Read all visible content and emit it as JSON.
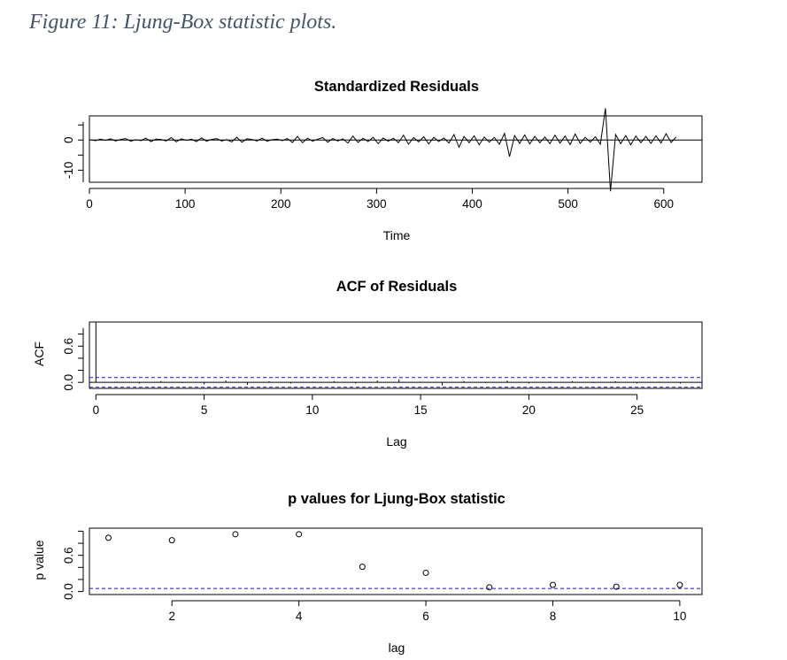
{
  "caption": "Figure 11: Ljung-Box statistic plots.",
  "chart_data": [
    {
      "type": "line",
      "title": "Standardized Residuals",
      "xlabel": "Time",
      "ylabel": "",
      "xlim": [
        0,
        640
      ],
      "ylim": [
        -14,
        8
      ],
      "xticks": [
        0,
        100,
        200,
        300,
        400,
        500,
        600
      ],
      "yticks": [
        -10,
        0
      ],
      "reference_line_y": 0,
      "series": [
        {
          "values": [
            0.1,
            -0.2,
            0.3,
            -0.1,
            0.4,
            -0.3,
            0.2,
            0.5,
            -0.4,
            0.1,
            -0.2,
            0.6,
            -0.5,
            0.3,
            0.2,
            -0.3,
            0.8,
            -0.6,
            0.4,
            -0.1,
            0.3,
            -0.5,
            0.7,
            -0.4,
            0.2,
            0.5,
            -0.3,
            0.1,
            -0.6,
            0.9,
            -0.7,
            0.4,
            0.2,
            -0.3,
            0.6,
            -0.4,
            0.1,
            0.3,
            -0.2,
            0.5,
            -0.8,
            1.2,
            -0.9,
            0.6,
            -0.4,
            0.3,
            0.8,
            -0.7,
            0.5,
            -0.3,
            0.4,
            -1.0,
            1.3,
            -0.8,
            0.6,
            -0.5,
            0.9,
            -1.2,
            0.7,
            -0.4,
            0.6,
            -0.9,
            1.6,
            -1.4,
            0.8,
            -0.6,
            1.1,
            -1.3,
            0.9,
            -0.5,
            0.7,
            -1.0,
            1.8,
            -2.4,
            1.2,
            -0.9,
            1.4,
            -1.6,
            1.0,
            -0.7,
            0.9,
            -1.4,
            2.2,
            -5.5,
            1.5,
            -1.1,
            1.7,
            -1.3,
            1.2,
            -0.9,
            1.0,
            -1.2,
            1.6,
            -1.0,
            1.3,
            -1.5,
            2.0,
            -1.1,
            0.9,
            -0.7,
            1.1,
            -1.4,
            10.5,
            -17.0,
            1.8,
            -1.2,
            1.5,
            -1.6,
            1.3,
            -0.9,
            1.2,
            -1.1,
            1.4,
            -1.0,
            2.1,
            -0.8,
            1.0
          ]
        }
      ]
    },
    {
      "type": "bar",
      "title": "ACF of Residuals",
      "xlabel": "Lag",
      "ylabel": "ACF",
      "xlim": [
        -0.3,
        28
      ],
      "ylim": [
        -0.1,
        1.0
      ],
      "xticks": [
        0,
        5,
        10,
        15,
        20,
        25
      ],
      "yticks": [
        0.0,
        0.6
      ],
      "x": [
        0,
        1,
        2,
        3,
        4,
        5,
        6,
        7,
        8,
        9,
        10,
        11,
        12,
        13,
        14,
        15,
        16,
        17,
        18,
        19,
        20,
        21,
        22,
        23,
        24,
        25,
        26,
        27
      ],
      "values": [
        1.0,
        0.01,
        -0.02,
        0.02,
        -0.01,
        -0.03,
        0.03,
        -0.04,
        0.02,
        -0.02,
        0.01,
        0.02,
        -0.02,
        0.03,
        0.05,
        0.01,
        -0.05,
        0.02,
        -0.01,
        0.03,
        -0.02,
        0.01,
        0.02,
        -0.01,
        0.02,
        -0.02,
        0.01,
        -0.02
      ],
      "confidence_bounds": [
        -0.08,
        0.08
      ]
    },
    {
      "type": "scatter",
      "title": "p values for Ljung-Box statistic",
      "xlabel": "lag",
      "ylabel": "p value",
      "xlim": [
        0.7,
        10.35
      ],
      "ylim": [
        -0.05,
        1.05
      ],
      "xticks": [
        2,
        4,
        6,
        8,
        10
      ],
      "yticks": [
        0.0,
        0.6
      ],
      "x": [
        1,
        2,
        3,
        4,
        5,
        6,
        7,
        8,
        9,
        10
      ],
      "values": [
        0.89,
        0.85,
        0.95,
        0.95,
        0.41,
        0.31,
        0.07,
        0.11,
        0.08,
        0.11
      ],
      "threshold": 0.05
    }
  ]
}
